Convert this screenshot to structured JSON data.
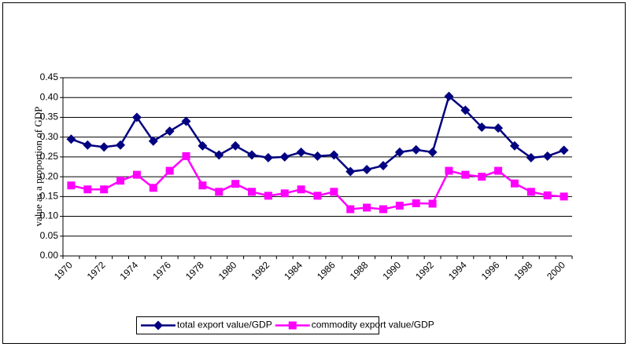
{
  "chart_data": {
    "type": "line",
    "y_label": "value as a proportion of  GDP",
    "categories": [
      "1970",
      null,
      "1972",
      null,
      "1974",
      null,
      "1976",
      null,
      "1978",
      null,
      "1980",
      null,
      "1982",
      null,
      "1984",
      null,
      "1986",
      null,
      "1988",
      null,
      "1990",
      null,
      "1992",
      null,
      "1994",
      null,
      "1996",
      null,
      "1998",
      null,
      "2000"
    ],
    "series": [
      {
        "name": "total export value/GDP",
        "color": "#000080",
        "marker": "diamond",
        "values": [
          0.295,
          0.28,
          0.275,
          0.28,
          0.35,
          0.29,
          0.315,
          0.34,
          0.278,
          0.255,
          0.278,
          0.255,
          0.248,
          0.25,
          0.262,
          0.252,
          0.255,
          0.213,
          0.218,
          0.228,
          0.262,
          0.268,
          0.262,
          0.403,
          0.368,
          0.325,
          0.323,
          0.278,
          0.248,
          0.252,
          0.267
        ]
      },
      {
        "name": "commodity export value/GDP",
        "color": "#ff00ff",
        "marker": "square",
        "values": [
          0.178,
          0.168,
          0.168,
          0.19,
          0.205,
          0.172,
          0.215,
          0.252,
          0.178,
          0.162,
          0.182,
          0.162,
          0.152,
          0.158,
          0.168,
          0.152,
          0.162,
          0.118,
          0.122,
          0.118,
          0.127,
          0.133,
          0.132,
          0.215,
          0.205,
          0.2,
          0.215,
          0.183,
          0.162,
          0.153,
          0.15
        ]
      }
    ],
    "ylim": [
      0,
      0.45
    ],
    "yticks": [
      {
        "value": 0,
        "label": "0.00"
      },
      0.05,
      {
        "value": 0.1,
        "label": "0.10"
      },
      0.15,
      {
        "value": 0.2,
        "label": "0.20"
      },
      0.25,
      {
        "value": 0.3,
        "label": "0.30"
      },
      0.35,
      {
        "value": 0.4,
        "label": "0.40"
      },
      0.45
    ],
    "grid": true,
    "legend": "bottom"
  }
}
